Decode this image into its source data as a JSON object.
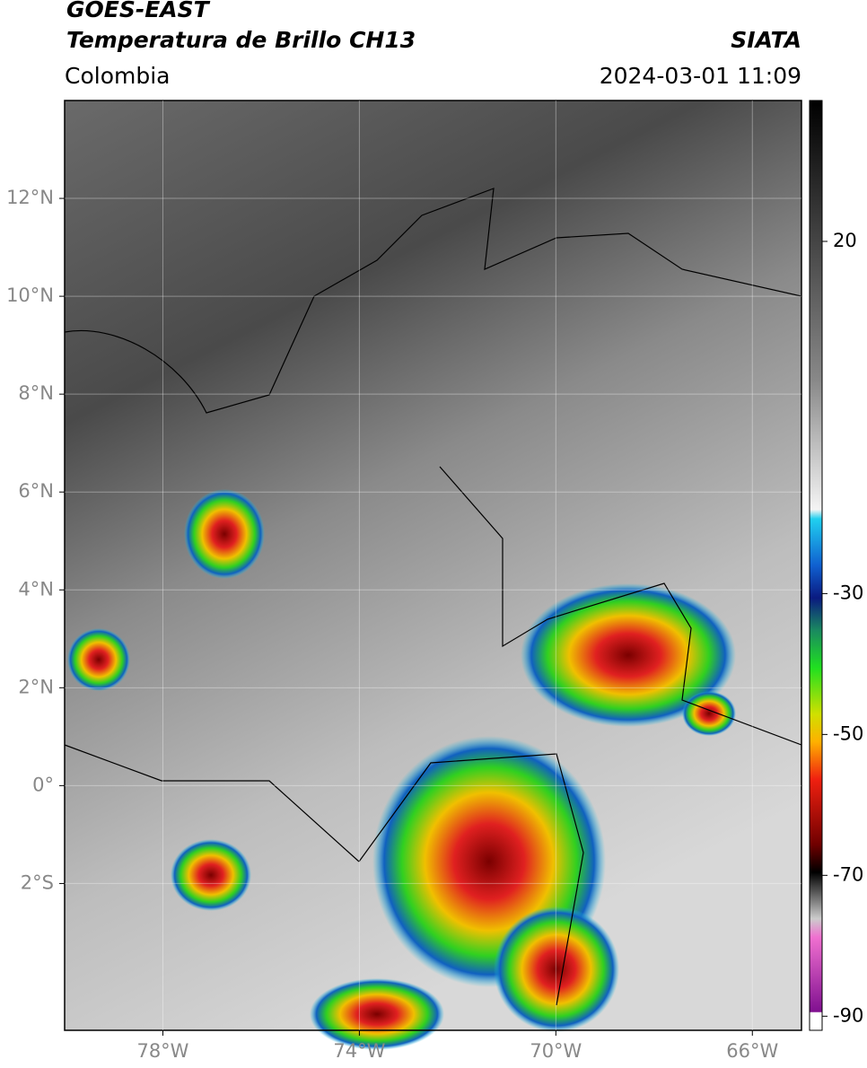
{
  "header": {
    "title": "GOES-EAST",
    "subtitle": "Temperatura de Brillo CH13",
    "region": "Colombia",
    "source": "SIATA",
    "datetime": "2024-03-01 11:09"
  },
  "map": {
    "lonlim": [
      -80,
      -65
    ],
    "latlim": [
      -5,
      14
    ],
    "xticks": [
      {
        "value": -78,
        "label": "78°W"
      },
      {
        "value": -74,
        "label": "74°W"
      },
      {
        "value": -70,
        "label": "70°W"
      },
      {
        "value": -66,
        "label": "66°W"
      }
    ],
    "yticks": [
      {
        "value": 12,
        "label": "12°N"
      },
      {
        "value": 10,
        "label": "10°N"
      },
      {
        "value": 8,
        "label": "8°N"
      },
      {
        "value": 6,
        "label": "6°N"
      },
      {
        "value": 4,
        "label": "4°N"
      },
      {
        "value": 2,
        "label": "2°N"
      },
      {
        "value": 0,
        "label": "0°"
      },
      {
        "value": -2,
        "label": "2°S"
      }
    ]
  },
  "colorbar": {
    "lim": [
      40,
      -92
    ],
    "ticks": [
      20,
      -30,
      -50,
      -70,
      -90
    ]
  }
}
